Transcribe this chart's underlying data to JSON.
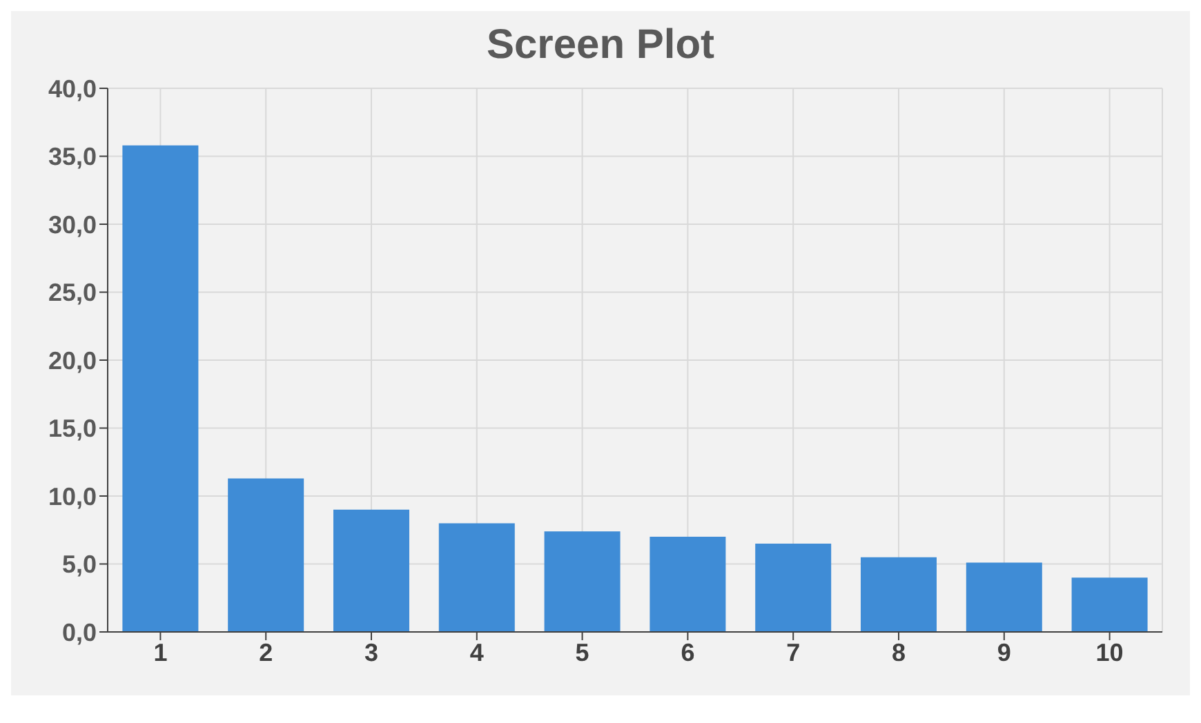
{
  "chart_data": {
    "type": "bar",
    "title": "Screen Plot",
    "categories": [
      "1",
      "2",
      "3",
      "4",
      "5",
      "6",
      "7",
      "8",
      "9",
      "10"
    ],
    "values": [
      35.8,
      11.3,
      9.0,
      8.0,
      7.4,
      7.0,
      6.5,
      5.5,
      5.1,
      4.0
    ],
    "color": "#3f8cd6",
    "ylim": [
      0,
      40
    ],
    "yticks": [
      {
        "value": 0,
        "label": "0,0"
      },
      {
        "value": 5,
        "label": "5,0"
      },
      {
        "value": 10,
        "label": "10,0"
      },
      {
        "value": 15,
        "label": "15,0"
      },
      {
        "value": 20,
        "label": "20,0"
      },
      {
        "value": 25,
        "label": "25,0"
      },
      {
        "value": 30,
        "label": "30,0"
      },
      {
        "value": 35,
        "label": "35,0"
      },
      {
        "value": 40,
        "label": "40,0"
      }
    ],
    "grid": true
  }
}
